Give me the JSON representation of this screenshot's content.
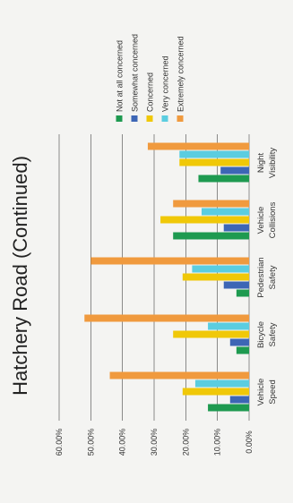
{
  "chart_data": {
    "type": "bar",
    "orientation": "rotated-90-counterclockwise",
    "title": "Hatchery Road (Continued)",
    "categories": [
      [
        "Vehicle",
        "Speed"
      ],
      [
        "Bicycle",
        "Safety"
      ],
      [
        "Pedestrian",
        "Safety"
      ],
      [
        "Vehicle",
        "Collisions"
      ],
      [
        "Night",
        "Visibility"
      ]
    ],
    "series": [
      {
        "name": "Not at all concerned",
        "color": "#1e9a50",
        "values": [
          13,
          4,
          4,
          24,
          16
        ]
      },
      {
        "name": "Somewhat concerned",
        "color": "#3d66b5",
        "values": [
          6,
          6,
          8,
          8,
          9
        ]
      },
      {
        "name": "Concerned",
        "color": "#f0c808",
        "values": [
          21,
          24,
          21,
          28,
          22
        ]
      },
      {
        "name": "Very concerned",
        "color": "#5bcde0",
        "values": [
          17,
          13,
          18,
          15,
          22
        ]
      },
      {
        "name": "Extremely concerned",
        "color": "#f09a3e",
        "values": [
          44,
          52,
          50,
          24,
          32
        ]
      }
    ],
    "y_ticks": [
      "0.00%",
      "10.00%",
      "20.00%",
      "30.00%",
      "40.00%",
      "50.00%",
      "60.00%"
    ],
    "ylim": [
      0,
      60
    ],
    "grid": true,
    "legend_position": "right"
  }
}
